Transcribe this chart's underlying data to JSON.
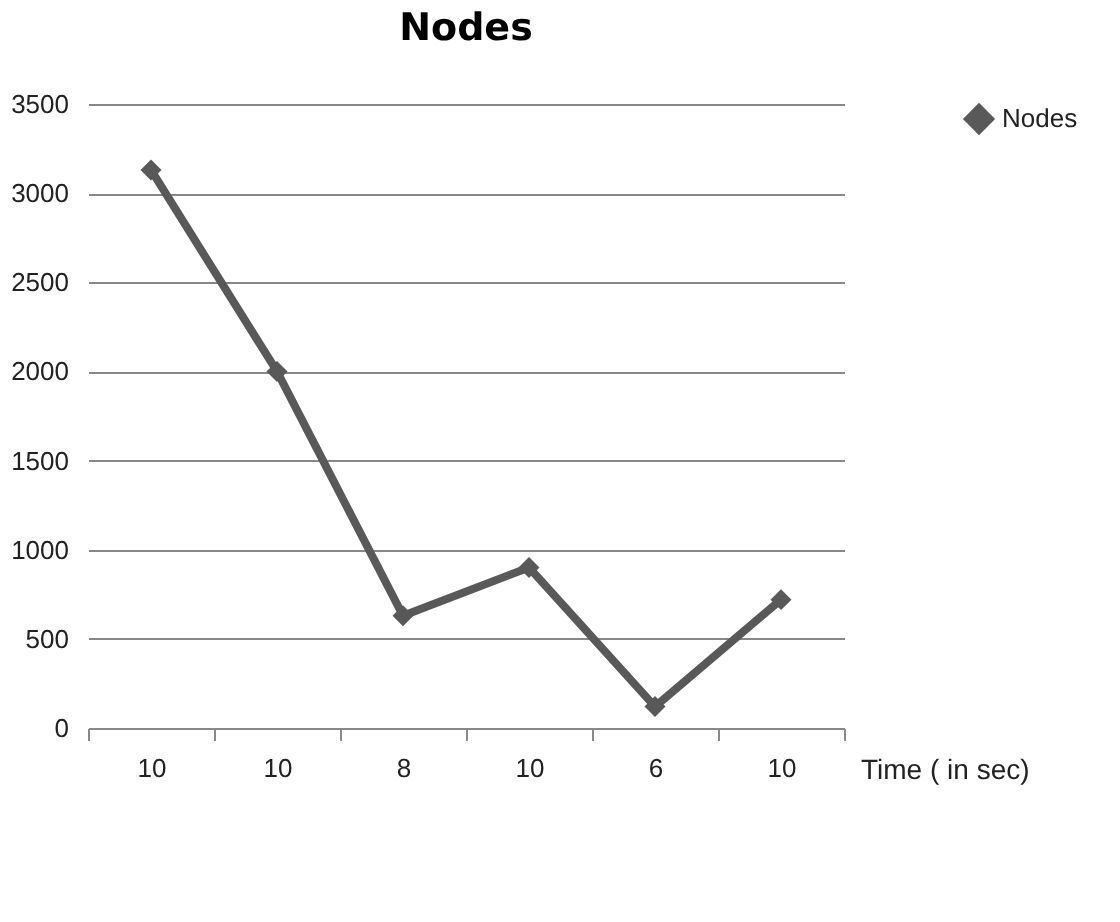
{
  "chart_data": {
    "type": "line",
    "title": "Nodes",
    "xlabel": "Time ( in sec)",
    "categories": [
      "10",
      "10",
      "8",
      "10",
      "6",
      "10"
    ],
    "series": [
      {
        "name": "Nodes",
        "color": "#595959",
        "values": [
          3130,
          2000,
          630,
          900,
          120,
          720
        ]
      }
    ],
    "ylim": [
      0,
      3500
    ],
    "yticks": [
      0,
      500,
      1000,
      1500,
      2000,
      2500,
      3000,
      3500
    ],
    "grid": "y",
    "legend": "right",
    "marker": "diamond",
    "line_style": "solid"
  }
}
